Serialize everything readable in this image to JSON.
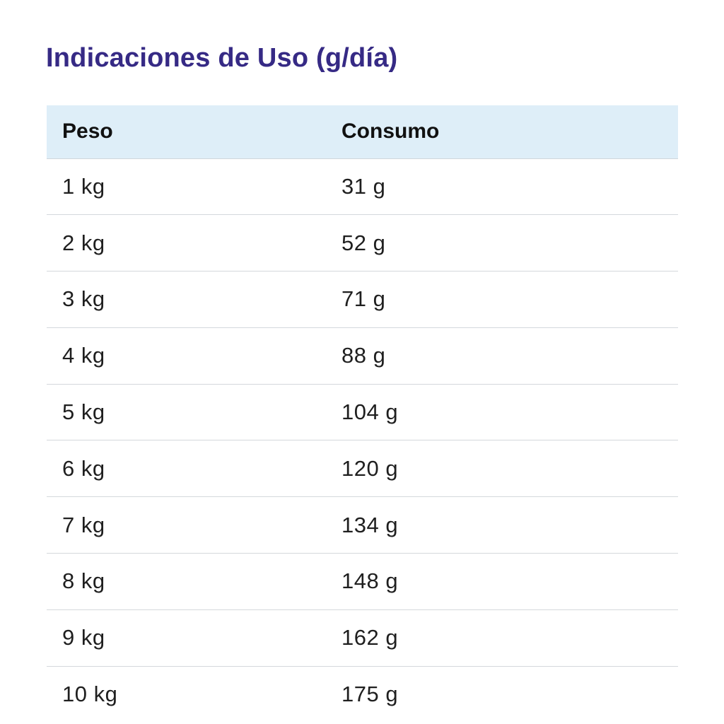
{
  "title": "Indicaciones de Uso (g/día)",
  "table": {
    "headers": [
      "Peso",
      "Consumo"
    ],
    "rows": [
      [
        "1 kg",
        "31 g"
      ],
      [
        "2 kg",
        "52 g"
      ],
      [
        "3 kg",
        "71 g"
      ],
      [
        "4 kg",
        "88 g"
      ],
      [
        "5 kg",
        "104 g"
      ],
      [
        "6 kg",
        "120 g"
      ],
      [
        "7 kg",
        "134 g"
      ],
      [
        "8 kg",
        "148 g"
      ],
      [
        "9 kg",
        "162 g"
      ],
      [
        "10 kg",
        "175 g"
      ]
    ]
  },
  "colors": {
    "title": "#362a85",
    "header_background": "#deeef8",
    "row_divider": "#d4d8dc"
  }
}
